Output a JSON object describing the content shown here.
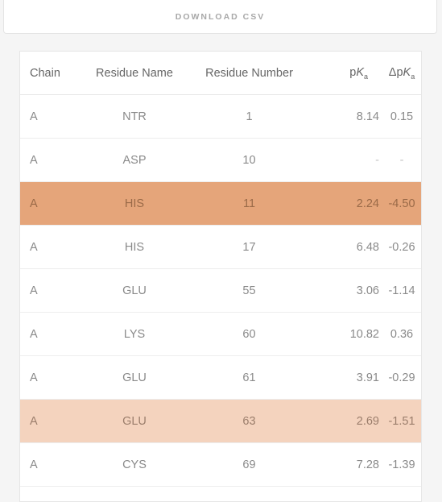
{
  "download": {
    "label": "DOWNLOAD CSV"
  },
  "table": {
    "headers": {
      "chain": "Chain",
      "residue_name": "Residue Name",
      "residue_number": "Residue Number",
      "pka_prefix": "p",
      "pka_k": "K",
      "pka_sub": "a",
      "dpka_prefix": "Δp",
      "dpka_k": "K",
      "dpka_sub": "a"
    },
    "rows": [
      {
        "chain": "A",
        "residue_name": "NTR",
        "residue_number": "1",
        "pka": "8.14",
        "dpka": "0.15"
      },
      {
        "chain": "A",
        "residue_name": "ASP",
        "residue_number": "10",
        "pka": "-",
        "dpka": "-"
      },
      {
        "chain": "A",
        "residue_name": "HIS",
        "residue_number": "11",
        "pka": "2.24",
        "dpka": "-4.50"
      },
      {
        "chain": "A",
        "residue_name": "HIS",
        "residue_number": "17",
        "pka": "6.48",
        "dpka": "-0.26"
      },
      {
        "chain": "A",
        "residue_name": "GLU",
        "residue_number": "55",
        "pka": "3.06",
        "dpka": "-1.14"
      },
      {
        "chain": "A",
        "residue_name": "LYS",
        "residue_number": "60",
        "pka": "10.82",
        "dpka": "0.36"
      },
      {
        "chain": "A",
        "residue_name": "GLU",
        "residue_number": "61",
        "pka": "3.91",
        "dpka": "-0.29"
      },
      {
        "chain": "A",
        "residue_name": "GLU",
        "residue_number": "63",
        "pka": "2.69",
        "dpka": "-1.51"
      },
      {
        "chain": "A",
        "residue_name": "CYS",
        "residue_number": "69",
        "pka": "7.28",
        "dpka": "-1.39"
      }
    ]
  },
  "colors": {
    "highlight_strong": "#e5a57a",
    "highlight_light": "#f4d3be"
  }
}
